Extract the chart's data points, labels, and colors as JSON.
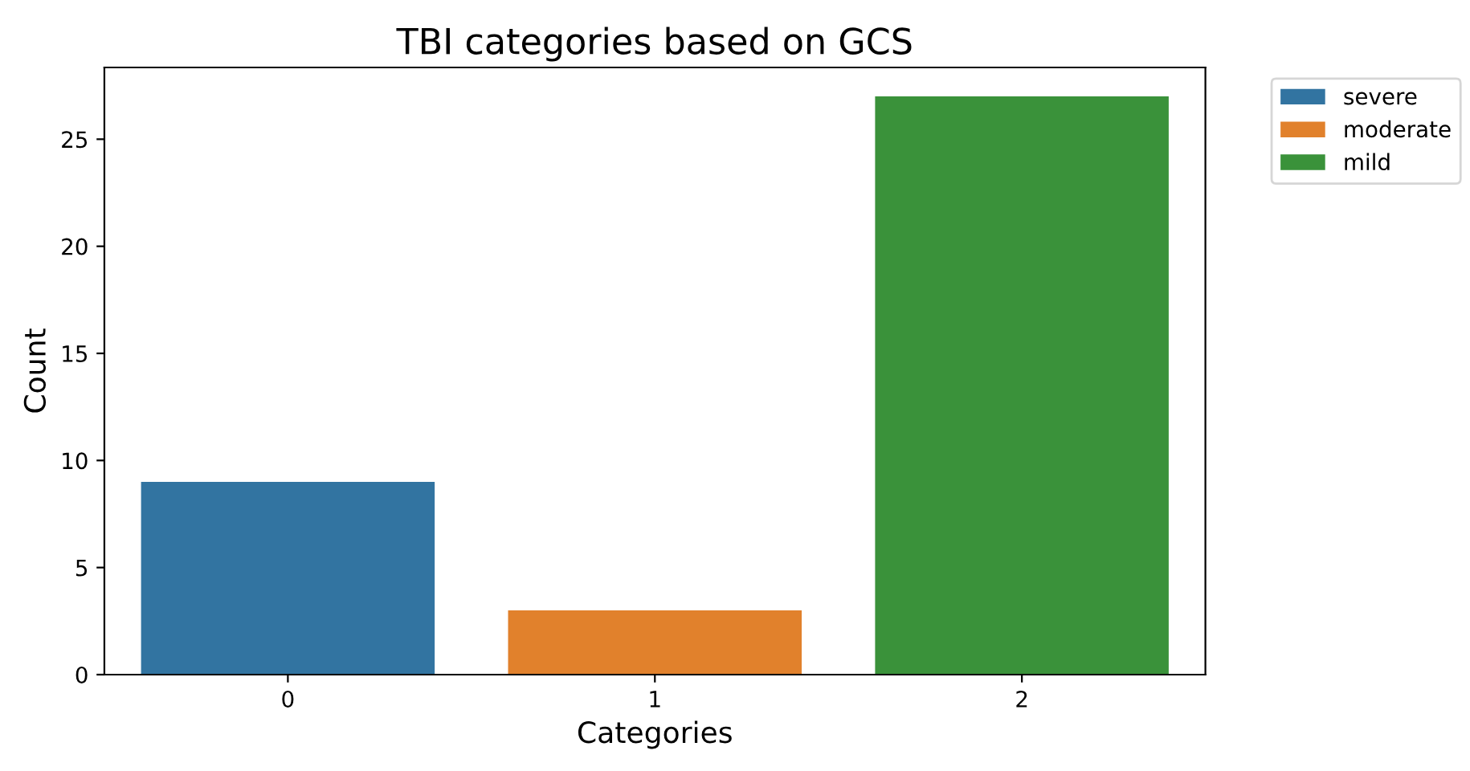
{
  "chart_data": {
    "type": "bar",
    "title": "TBI categories based on GCS",
    "xlabel": "Categories",
    "ylabel": "Count",
    "categories": [
      "0",
      "1",
      "2"
    ],
    "series": [
      {
        "name": "severe",
        "color": "#3274a1",
        "values": [
          9,
          null,
          null
        ]
      },
      {
        "name": "moderate",
        "color": "#e1812c",
        "values": [
          null,
          3,
          null
        ]
      },
      {
        "name": "mild",
        "color": "#3a923a",
        "values": [
          null,
          null,
          27
        ]
      }
    ],
    "ylim": [
      0,
      28.35
    ],
    "yticks": [
      0,
      5,
      10,
      15,
      20,
      25
    ],
    "grid": false,
    "legend": "top right"
  }
}
